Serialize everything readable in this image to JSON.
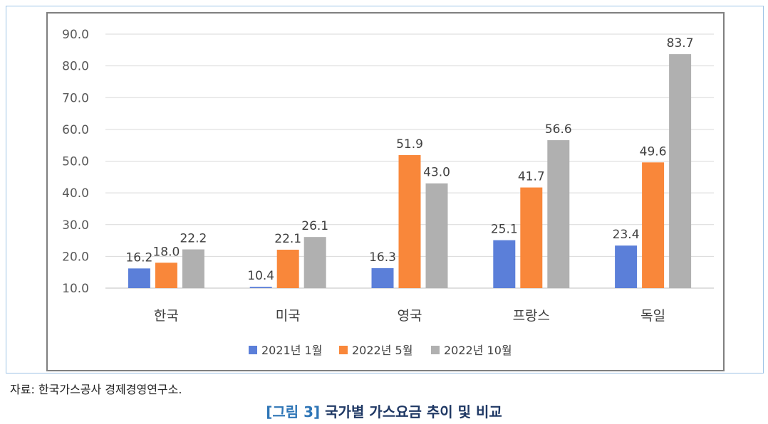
{
  "chart_data": {
    "type": "bar",
    "categories": [
      "한국",
      "미국",
      "영국",
      "프랑스",
      "독일"
    ],
    "series": [
      {
        "name": "2021년 1월",
        "color": "#5b7fd9",
        "values": [
          16.2,
          10.4,
          16.3,
          25.1,
          23.4
        ]
      },
      {
        "name": "2022년 5월",
        "color": "#f9873a",
        "values": [
          18.0,
          22.1,
          51.9,
          41.7,
          49.6
        ]
      },
      {
        "name": "2022년 10월",
        "color": "#b0b0b0",
        "values": [
          22.2,
          26.1,
          43.0,
          56.6,
          83.7
        ]
      }
    ],
    "data_labels": [
      [
        "16.2",
        "10.4",
        "16.3",
        "25.1",
        "23.4"
      ],
      [
        "18.0",
        "22.1",
        "51.9",
        "41.7",
        "49.6"
      ],
      [
        "22.2",
        "26.1",
        "43.0",
        "56.6",
        "83.7"
      ]
    ],
    "ylim": [
      10,
      90
    ],
    "yticks": [
      "10.0",
      "20.0",
      "30.0",
      "40.0",
      "50.0",
      "60.0",
      "70.0",
      "80.0",
      "90.0"
    ],
    "grid": true,
    "legend_position": "bottom"
  },
  "source": "자료: 한국가스공사 경제경영연구소.",
  "caption": {
    "number": "[그림 3]",
    "title": "국가별 가스요금 추이 및 비교"
  }
}
